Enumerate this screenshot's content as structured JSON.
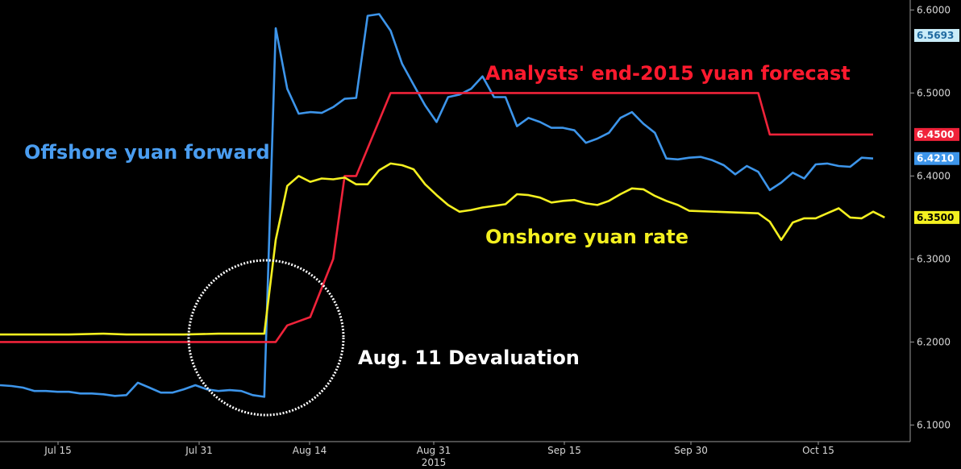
{
  "chart_data": {
    "type": "line",
    "title": "",
    "xlabel": "",
    "ylabel": "",
    "ylim": [
      6.08,
      6.612
    ],
    "y_ticks": [
      6.1,
      6.2,
      6.3,
      6.4,
      6.5,
      6.6
    ],
    "y_tick_labels": [
      "6.1000",
      "6.2000",
      "6.3000",
      "6.4000",
      "6.5000",
      "6.6000"
    ],
    "x_ticks": [
      {
        "label": "Jul 15",
        "sub": ""
      },
      {
        "label": "Jul 31",
        "sub": ""
      },
      {
        "label": "Aug 14",
        "sub": ""
      },
      {
        "label": "Aug 31",
        "sub": "2015"
      },
      {
        "label": "Sep 15",
        "sub": ""
      },
      {
        "label": "Sep 30",
        "sub": ""
      },
      {
        "label": "Oct 15",
        "sub": ""
      }
    ],
    "grid": false,
    "background": "#000000",
    "series": [
      {
        "name": "Offshore yuan forward",
        "color": "#3d95ea",
        "last_label": "6.4210",
        "values": [
          [
            "2015-07-07",
            6.148
          ],
          [
            "2015-07-08",
            6.147
          ],
          [
            "2015-07-09",
            6.145
          ],
          [
            "2015-07-10",
            6.141
          ],
          [
            "2015-07-13",
            6.141
          ],
          [
            "2015-07-14",
            6.14
          ],
          [
            "2015-07-15",
            6.14
          ],
          [
            "2015-07-16",
            6.138
          ],
          [
            "2015-07-17",
            6.138
          ],
          [
            "2015-07-20",
            6.137
          ],
          [
            "2015-07-21",
            6.135
          ],
          [
            "2015-07-22",
            6.136
          ],
          [
            "2015-07-23",
            6.151
          ],
          [
            "2015-07-24",
            6.145
          ],
          [
            "2015-07-27",
            6.139
          ],
          [
            "2015-07-28",
            6.139
          ],
          [
            "2015-07-29",
            6.143
          ],
          [
            "2015-07-30",
            6.148
          ],
          [
            "2015-07-31",
            6.143
          ],
          [
            "2015-08-03",
            6.141
          ],
          [
            "2015-08-04",
            6.142
          ],
          [
            "2015-08-05",
            6.141
          ],
          [
            "2015-08-06",
            6.136
          ],
          [
            "2015-08-07",
            6.134
          ],
          [
            "2015-08-10",
            6.578
          ],
          [
            "2015-08-11",
            6.505
          ],
          [
            "2015-08-12",
            6.475
          ],
          [
            "2015-08-13",
            6.477
          ],
          [
            "2015-08-14",
            6.476
          ],
          [
            "2015-08-17",
            6.483
          ],
          [
            "2015-08-18",
            6.493
          ],
          [
            "2015-08-19",
            6.494
          ],
          [
            "2015-08-20",
            6.593
          ],
          [
            "2015-08-21",
            6.595
          ],
          [
            "2015-08-24",
            6.575
          ],
          [
            "2015-08-25",
            6.535
          ],
          [
            "2015-08-26",
            6.51
          ],
          [
            "2015-08-27",
            6.485
          ],
          [
            "2015-08-28",
            6.465
          ],
          [
            "2015-08-31",
            6.495
          ],
          [
            "2015-09-01",
            6.498
          ],
          [
            "2015-09-02",
            6.505
          ],
          [
            "2015-09-03",
            6.52
          ],
          [
            "2015-09-04",
            6.495
          ],
          [
            "2015-09-07",
            6.495
          ],
          [
            "2015-09-08",
            6.46
          ],
          [
            "2015-09-09",
            6.47
          ],
          [
            "2015-09-10",
            6.465
          ],
          [
            "2015-09-11",
            6.458
          ],
          [
            "2015-09-14",
            6.458
          ],
          [
            "2015-09-15",
            6.455
          ],
          [
            "2015-09-16",
            6.44
          ],
          [
            "2015-09-17",
            6.445
          ],
          [
            "2015-09-18",
            6.452
          ],
          [
            "2015-09-21",
            6.47
          ],
          [
            "2015-09-22",
            6.477
          ],
          [
            "2015-09-23",
            6.463
          ],
          [
            "2015-09-24",
            6.452
          ],
          [
            "2015-09-25",
            6.421
          ],
          [
            "2015-09-28",
            6.42
          ],
          [
            "2015-09-29",
            6.422
          ],
          [
            "2015-09-30",
            6.423
          ],
          [
            "2015-10-01",
            6.419
          ],
          [
            "2015-10-02",
            6.413
          ],
          [
            "2015-10-05",
            6.402
          ],
          [
            "2015-10-06",
            6.412
          ],
          [
            "2015-10-07",
            6.405
          ],
          [
            "2015-10-08",
            6.383
          ],
          [
            "2015-10-09",
            6.392
          ],
          [
            "2015-10-12",
            6.404
          ],
          [
            "2015-10-13",
            6.397
          ],
          [
            "2015-10-14",
            6.414
          ],
          [
            "2015-10-15",
            6.415
          ],
          [
            "2015-10-16",
            6.412
          ],
          [
            "2015-10-19",
            6.411
          ],
          [
            "2015-10-20",
            6.422
          ],
          [
            "2015-10-21",
            6.421
          ]
        ]
      },
      {
        "name": "Analysts' end-2015 yuan forecast",
        "color": "#f0233a",
        "last_label": "6.4500",
        "values": [
          [
            "2015-07-07",
            6.2
          ],
          [
            "2015-08-07",
            6.2
          ],
          [
            "2015-08-10",
            6.2
          ],
          [
            "2015-08-11",
            6.22
          ],
          [
            "2015-08-13",
            6.23
          ],
          [
            "2015-08-17",
            6.3
          ],
          [
            "2015-08-18",
            6.4
          ],
          [
            "2015-08-19",
            6.4
          ],
          [
            "2015-08-24",
            6.5
          ],
          [
            "2015-10-07",
            6.5
          ],
          [
            "2015-10-08",
            6.45
          ],
          [
            "2015-10-21",
            6.45
          ]
        ]
      },
      {
        "name": "Onshore yuan rate",
        "color": "#f4f020",
        "last_label": "6.3500",
        "values": [
          [
            "2015-07-07",
            6.209
          ],
          [
            "2015-07-10",
            6.209
          ],
          [
            "2015-07-14",
            6.209
          ],
          [
            "2015-07-15",
            6.209
          ],
          [
            "2015-07-20",
            6.21
          ],
          [
            "2015-07-22",
            6.209
          ],
          [
            "2015-07-29",
            6.209
          ],
          [
            "2015-08-03",
            6.21
          ],
          [
            "2015-08-07",
            6.21
          ],
          [
            "2015-08-10",
            6.323
          ],
          [
            "2015-08-11",
            6.388
          ],
          [
            "2015-08-12",
            6.4
          ],
          [
            "2015-08-13",
            6.393
          ],
          [
            "2015-08-14",
            6.397
          ],
          [
            "2015-08-17",
            6.396
          ],
          [
            "2015-08-18",
            6.398
          ],
          [
            "2015-08-19",
            6.39
          ],
          [
            "2015-08-20",
            6.39
          ],
          [
            "2015-08-21",
            6.407
          ],
          [
            "2015-08-24",
            6.415
          ],
          [
            "2015-08-25",
            6.413
          ],
          [
            "2015-08-26",
            6.408
          ],
          [
            "2015-08-27",
            6.39
          ],
          [
            "2015-08-28",
            6.377
          ],
          [
            "2015-08-31",
            6.365
          ],
          [
            "2015-09-01",
            6.357
          ],
          [
            "2015-09-02",
            6.359
          ],
          [
            "2015-09-03",
            6.362
          ],
          [
            "2015-09-04",
            6.364
          ],
          [
            "2015-09-07",
            6.366
          ],
          [
            "2015-09-08",
            6.378
          ],
          [
            "2015-09-09",
            6.377
          ],
          [
            "2015-09-10",
            6.374
          ],
          [
            "2015-09-11",
            6.368
          ],
          [
            "2015-09-14",
            6.37
          ],
          [
            "2015-09-15",
            6.371
          ],
          [
            "2015-09-16",
            6.367
          ],
          [
            "2015-09-17",
            6.365
          ],
          [
            "2015-09-18",
            6.37
          ],
          [
            "2015-09-21",
            6.378
          ],
          [
            "2015-09-22",
            6.385
          ],
          [
            "2015-09-23",
            6.384
          ],
          [
            "2015-09-24",
            6.376
          ],
          [
            "2015-09-25",
            6.37
          ],
          [
            "2015-09-28",
            6.365
          ],
          [
            "2015-09-29",
            6.358
          ],
          [
            "2015-10-07",
            6.355
          ],
          [
            "2015-10-08",
            6.345
          ],
          [
            "2015-10-09",
            6.323
          ],
          [
            "2015-10-12",
            6.344
          ],
          [
            "2015-10-13",
            6.349
          ],
          [
            "2015-10-14",
            6.349
          ],
          [
            "2015-10-15",
            6.355
          ],
          [
            "2015-10-16",
            6.361
          ],
          [
            "2015-10-19",
            6.35
          ],
          [
            "2015-10-20",
            6.349
          ],
          [
            "2015-10-21",
            6.357
          ],
          [
            "2015-10-22",
            6.35
          ]
        ]
      }
    ],
    "annotations": {
      "offshore_label": "Offshore yuan forward",
      "forecast_label": "Analysts' end-2015 yuan forecast",
      "onshore_label": "Onshore yuan rate",
      "devaluation_label": "Aug. 11 Devaluation"
    },
    "price_tags": [
      {
        "text": "6.5693",
        "value": 6.5693,
        "bg": "#c9ecf8",
        "fg": "#1f6aa0"
      },
      {
        "text": "6.4500",
        "value": 6.45,
        "bg": "#f0233a",
        "fg": "#ffffff"
      },
      {
        "text": "6.4210",
        "value": 6.421,
        "bg": "#3d95ea",
        "fg": "#ffffff"
      },
      {
        "text": "6.3500",
        "value": 6.35,
        "bg": "#f4f020",
        "fg": "#000000"
      }
    ]
  }
}
